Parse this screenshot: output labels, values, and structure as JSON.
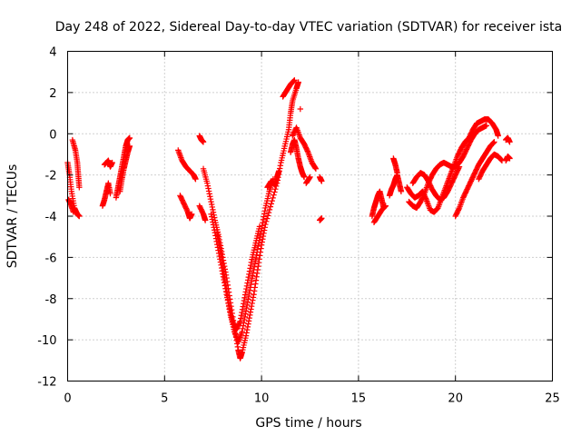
{
  "chart_data": {
    "type": "scatter",
    "title": "Day 248 of 2022, Sidereal Day-to-day VTEC variation (SDTVAR) for receiver ista",
    "xlabel": "GPS time / hours",
    "ylabel": "SDTVAR / TECUs",
    "xlim": [
      0,
      25
    ],
    "ylim": [
      -12,
      4
    ],
    "xticks": [
      0,
      5,
      10,
      15,
      20,
      25
    ],
    "yticks": [
      -12,
      -10,
      -8,
      -6,
      -4,
      -2,
      0,
      2,
      4
    ],
    "grid": true,
    "marker": "+",
    "color": "#ff0000",
    "series": [
      {
        "name": "SDTVAR",
        "segments": [
          [
            [
              0.0,
              -1.4
            ],
            [
              0.1,
              -2.0
            ],
            [
              0.2,
              -2.8
            ],
            [
              0.35,
              -3.6
            ],
            [
              0.5,
              -3.9
            ],
            [
              0.6,
              -4.0
            ]
          ],
          [
            [
              0.05,
              -3.2
            ],
            [
              0.15,
              -3.4
            ],
            [
              0.3,
              -3.8
            ]
          ],
          [
            [
              0.25,
              -0.3
            ],
            [
              0.4,
              -0.8
            ],
            [
              0.5,
              -1.4
            ],
            [
              0.55,
              -2.0
            ],
            [
              0.6,
              -2.6
            ]
          ],
          [
            [
              1.8,
              -3.5
            ],
            [
              1.9,
              -3.2
            ],
            [
              2.0,
              -2.8
            ],
            [
              2.1,
              -2.4
            ],
            [
              2.2,
              -2.9
            ]
          ],
          [
            [
              1.9,
              -1.5
            ],
            [
              2.1,
              -1.3
            ],
            [
              2.2,
              -1.6
            ],
            [
              2.3,
              -1.4
            ]
          ],
          [
            [
              2.5,
              -3.1
            ],
            [
              2.6,
              -2.6
            ],
            [
              2.7,
              -2.1
            ],
            [
              2.8,
              -1.6
            ],
            [
              2.9,
              -1.1
            ],
            [
              3.0,
              -0.6
            ],
            [
              3.1,
              -0.3
            ],
            [
              3.2,
              -0.2
            ]
          ],
          [
            [
              2.7,
              -2.8
            ],
            [
              2.8,
              -2.2
            ],
            [
              2.9,
              -1.7
            ],
            [
              3.0,
              -1.3
            ],
            [
              3.1,
              -0.9
            ],
            [
              3.2,
              -0.6
            ]
          ],
          [
            [
              5.7,
              -0.8
            ],
            [
              5.9,
              -1.3
            ],
            [
              6.1,
              -1.6
            ],
            [
              6.3,
              -1.8
            ],
            [
              6.5,
              -2.0
            ],
            [
              6.6,
              -2.2
            ]
          ],
          [
            [
              5.8,
              -3.0
            ],
            [
              6.0,
              -3.4
            ],
            [
              6.2,
              -3.8
            ],
            [
              6.3,
              -4.1
            ],
            [
              6.4,
              -3.9
            ]
          ],
          [
            [
              6.8,
              -0.1
            ],
            [
              6.9,
              -0.3
            ],
            [
              7.0,
              -0.4
            ]
          ],
          [
            [
              6.8,
              -3.5
            ],
            [
              7.0,
              -3.9
            ],
            [
              7.1,
              -4.2
            ]
          ],
          [
            [
              7.0,
              -1.7
            ],
            [
              7.2,
              -2.4
            ],
            [
              7.4,
              -3.3
            ],
            [
              7.6,
              -4.2
            ],
            [
              7.8,
              -5.0
            ],
            [
              8.0,
              -6.0
            ],
            [
              8.2,
              -7.0
            ],
            [
              8.4,
              -8.2
            ],
            [
              8.6,
              -9.4
            ],
            [
              8.8,
              -10.5
            ],
            [
              8.9,
              -10.9
            ],
            [
              9.0,
              -10.6
            ],
            [
              9.2,
              -9.8
            ],
            [
              9.4,
              -8.8
            ],
            [
              9.6,
              -7.8
            ],
            [
              9.8,
              -6.6
            ],
            [
              10.0,
              -5.4
            ],
            [
              10.2,
              -4.4
            ],
            [
              10.5,
              -3.4
            ],
            [
              10.8,
              -2.4
            ],
            [
              11.0,
              -1.4
            ],
            [
              11.2,
              -0.6
            ],
            [
              11.4,
              0.2
            ],
            [
              11.5,
              1.0
            ],
            [
              11.6,
              1.6
            ],
            [
              11.8,
              2.2
            ],
            [
              11.9,
              2.5
            ]
          ],
          [
            [
              7.4,
              -3.9
            ],
            [
              7.6,
              -4.8
            ],
            [
              7.8,
              -5.8
            ],
            [
              8.0,
              -6.8
            ],
            [
              8.2,
              -7.8
            ],
            [
              8.4,
              -8.8
            ],
            [
              8.6,
              -9.6
            ],
            [
              8.8,
              -10.1
            ],
            [
              9.0,
              -9.6
            ],
            [
              9.2,
              -8.6
            ],
            [
              9.4,
              -7.6
            ],
            [
              9.6,
              -6.6
            ],
            [
              9.8,
              -5.6
            ],
            [
              10.0,
              -4.6
            ],
            [
              10.2,
              -3.6
            ],
            [
              10.4,
              -2.8
            ],
            [
              10.6,
              -2.2
            ]
          ],
          [
            [
              7.7,
              -4.8
            ],
            [
              7.9,
              -5.8
            ],
            [
              8.1,
              -7.0
            ],
            [
              8.3,
              -8.2
            ],
            [
              8.5,
              -9.1
            ],
            [
              8.7,
              -9.5
            ],
            [
              8.9,
              -9.1
            ],
            [
              9.1,
              -8.1
            ],
            [
              9.3,
              -7.1
            ],
            [
              9.5,
              -6.1
            ],
            [
              9.7,
              -5.3
            ],
            [
              9.9,
              -4.5
            ]
          ],
          [
            [
              10.3,
              -2.6
            ],
            [
              10.5,
              -2.3
            ],
            [
              10.7,
              -2.5
            ],
            [
              10.8,
              -2.1
            ],
            [
              10.9,
              -1.8
            ]
          ],
          [
            [
              11.1,
              1.8
            ],
            [
              11.3,
              2.1
            ],
            [
              11.5,
              2.4
            ],
            [
              11.7,
              2.6
            ]
          ],
          [
            [
              11.5,
              -0.9
            ],
            [
              11.6,
              -0.5
            ],
            [
              11.7,
              -0.3
            ],
            [
              11.8,
              -0.7
            ],
            [
              11.9,
              -1.2
            ],
            [
              12.0,
              -1.6
            ],
            [
              12.1,
              -1.9
            ],
            [
              12.2,
              -2.1
            ]
          ],
          [
            [
              11.6,
              -0.1
            ],
            [
              11.8,
              0.3
            ],
            [
              12.0,
              -0.2
            ],
            [
              12.2,
              -0.5
            ],
            [
              12.4,
              -0.9
            ],
            [
              12.6,
              -1.4
            ],
            [
              12.8,
              -1.7
            ]
          ],
          [
            [
              12.0,
              1.2
            ]
          ],
          [
            [
              12.3,
              -2.4
            ],
            [
              12.5,
              -2.1
            ]
          ],
          [
            [
              13.0,
              -2.1
            ],
            [
              13.1,
              -2.3
            ]
          ],
          [
            [
              13.0,
              -4.2
            ],
            [
              13.1,
              -4.1
            ]
          ],
          [
            [
              15.7,
              -4.0
            ],
            [
              15.8,
              -3.6
            ],
            [
              15.9,
              -3.3
            ],
            [
              16.0,
              -3.0
            ],
            [
              16.1,
              -2.8
            ],
            [
              16.2,
              -3.2
            ],
            [
              16.3,
              -3.6
            ]
          ],
          [
            [
              15.8,
              -4.3
            ],
            [
              16.0,
              -4.0
            ],
            [
              16.2,
              -3.7
            ],
            [
              16.4,
              -3.5
            ]
          ],
          [
            [
              16.6,
              -3.0
            ],
            [
              16.7,
              -2.7
            ],
            [
              16.8,
              -2.5
            ],
            [
              16.9,
              -2.2
            ],
            [
              17.0,
              -2.0
            ],
            [
              17.1,
              -2.4
            ],
            [
              17.2,
              -2.8
            ]
          ],
          [
            [
              16.8,
              -1.2
            ],
            [
              16.9,
              -1.5
            ],
            [
              17.0,
              -1.9
            ]
          ],
          [
            [
              17.5,
              -2.6
            ],
            [
              17.7,
              -2.9
            ],
            [
              17.9,
              -3.1
            ],
            [
              18.1,
              -3.0
            ],
            [
              18.3,
              -2.8
            ],
            [
              18.5,
              -3.2
            ],
            [
              18.7,
              -3.7
            ],
            [
              18.9,
              -3.8
            ],
            [
              19.1,
              -3.6
            ],
            [
              19.3,
              -3.1
            ],
            [
              19.5,
              -2.6
            ],
            [
              19.7,
              -2.1
            ],
            [
              19.9,
              -1.6
            ],
            [
              20.1,
              -1.1
            ],
            [
              20.3,
              -0.7
            ],
            [
              20.5,
              -0.4
            ],
            [
              20.7,
              -0.2
            ],
            [
              20.9,
              0.2
            ],
            [
              21.1,
              0.5
            ],
            [
              21.3,
              0.6
            ],
            [
              21.5,
              0.7
            ],
            [
              21.7,
              0.7
            ],
            [
              21.9,
              0.5
            ],
            [
              22.1,
              0.2
            ],
            [
              22.2,
              -0.1
            ]
          ],
          [
            [
              17.6,
              -3.3
            ],
            [
              17.8,
              -3.5
            ],
            [
              18.0,
              -3.6
            ],
            [
              18.2,
              -3.3
            ],
            [
              18.4,
              -2.9
            ],
            [
              18.6,
              -2.4
            ],
            [
              18.8,
              -2.0
            ],
            [
              19.0,
              -1.7
            ],
            [
              19.2,
              -1.5
            ],
            [
              19.4,
              -1.4
            ],
            [
              19.6,
              -1.5
            ],
            [
              19.8,
              -1.6
            ],
            [
              20.0,
              -1.6
            ],
            [
              20.2,
              -1.4
            ],
            [
              20.4,
              -1.1
            ],
            [
              20.6,
              -0.7
            ],
            [
              20.8,
              -0.3
            ],
            [
              21.0,
              0.0
            ],
            [
              21.2,
              0.2
            ],
            [
              21.4,
              0.3
            ],
            [
              21.6,
              0.4
            ]
          ],
          [
            [
              17.8,
              -2.4
            ],
            [
              18.0,
              -2.1
            ],
            [
              18.2,
              -1.9
            ],
            [
              18.4,
              -2.0
            ],
            [
              18.6,
              -2.3
            ],
            [
              18.8,
              -2.7
            ],
            [
              19.0,
              -3.0
            ],
            [
              19.2,
              -3.2
            ],
            [
              19.4,
              -3.1
            ],
            [
              19.6,
              -2.8
            ],
            [
              19.8,
              -2.4
            ],
            [
              20.0,
              -2.0
            ],
            [
              20.2,
              -1.6
            ]
          ],
          [
            [
              20.0,
              -4.0
            ],
            [
              20.2,
              -3.6
            ],
            [
              20.4,
              -3.1
            ],
            [
              20.6,
              -2.7
            ],
            [
              20.8,
              -2.3
            ],
            [
              21.0,
              -1.9
            ],
            [
              21.2,
              -1.5
            ],
            [
              21.4,
              -1.2
            ],
            [
              21.6,
              -0.9
            ],
            [
              21.8,
              -0.6
            ],
            [
              22.0,
              -0.4
            ]
          ],
          [
            [
              21.2,
              -2.2
            ],
            [
              21.4,
              -1.8
            ],
            [
              21.6,
              -1.5
            ],
            [
              21.8,
              -1.2
            ],
            [
              22.0,
              -1.0
            ],
            [
              22.2,
              -1.1
            ],
            [
              22.4,
              -1.3
            ]
          ],
          [
            [
              22.6,
              -1.3
            ],
            [
              22.7,
              -1.1
            ],
            [
              22.8,
              -1.2
            ]
          ],
          [
            [
              22.6,
              -0.3
            ],
            [
              22.7,
              -0.2
            ],
            [
              22.8,
              -0.4
            ]
          ]
        ]
      }
    ]
  }
}
